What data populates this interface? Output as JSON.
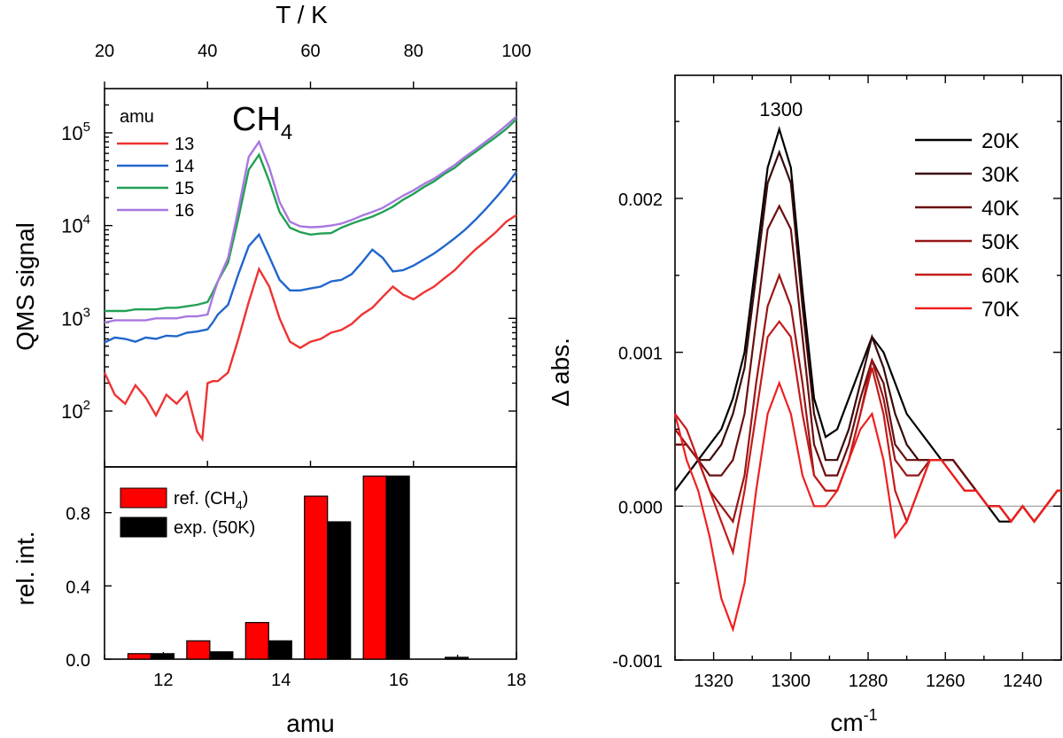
{
  "chart_data": [
    {
      "type": "line",
      "panel": "top-left",
      "title": "CH4",
      "title_main": "CH",
      "title_sub": "4",
      "xlabel": "T / K",
      "x_axis_position": "top",
      "ylabel": "QMS signal",
      "y_scale": "log",
      "xlim": [
        20,
        100
      ],
      "ylim": [
        25,
        300000
      ],
      "x_ticks": [
        20,
        40,
        60,
        80,
        100
      ],
      "y_ticks": [
        {
          "value": 100,
          "base": "10",
          "exp": "2"
        },
        {
          "value": 1000,
          "base": "10",
          "exp": "3"
        },
        {
          "value": 10000,
          "base": "10",
          "exp": "4"
        },
        {
          "value": 100000,
          "base": "10",
          "exp": "5"
        }
      ],
      "legend": {
        "title": "amu",
        "position": "top-left"
      },
      "series": [
        {
          "name": "13",
          "color": "#ee3333",
          "x": [
            20,
            22,
            24,
            26,
            28,
            30,
            32,
            34,
            36,
            38,
            39,
            40,
            41,
            42,
            44,
            46,
            48,
            50,
            52,
            54,
            56,
            58,
            60,
            62,
            64,
            66,
            68,
            70,
            72,
            74,
            76,
            78,
            80,
            82,
            84,
            86,
            88,
            90,
            92,
            94,
            96,
            98,
            100
          ],
          "y": [
            260,
            150,
            120,
            190,
            140,
            90,
            150,
            120,
            160,
            60,
            50,
            200,
            210,
            210,
            260,
            600,
            1500,
            3400,
            2200,
            1000,
            560,
            480,
            560,
            600,
            700,
            750,
            870,
            1100,
            1300,
            1700,
            2200,
            1800,
            1600,
            1900,
            2200,
            2700,
            3300,
            4300,
            5500,
            6800,
            8500,
            11000,
            13000
          ]
        },
        {
          "name": "14",
          "color": "#2266cc",
          "x": [
            20,
            22,
            24,
            26,
            28,
            30,
            32,
            34,
            36,
            38,
            40,
            41,
            42,
            44,
            46,
            48,
            50,
            52,
            54,
            56,
            58,
            60,
            62,
            64,
            66,
            68,
            70,
            72,
            74,
            76,
            78,
            80,
            82,
            84,
            86,
            88,
            90,
            92,
            94,
            96,
            98,
            100
          ],
          "y": [
            550,
            620,
            600,
            560,
            620,
            600,
            650,
            640,
            700,
            720,
            760,
            900,
            1100,
            1400,
            3000,
            6000,
            8000,
            4600,
            2600,
            2000,
            2000,
            2100,
            2200,
            2500,
            2600,
            3000,
            4000,
            5500,
            4500,
            3200,
            3300,
            3700,
            4300,
            5000,
            6000,
            7300,
            9000,
            11500,
            15000,
            20000,
            27000,
            38000
          ]
        },
        {
          "name": "15",
          "color": "#22a055",
          "x": [
            20,
            22,
            24,
            26,
            28,
            30,
            32,
            34,
            36,
            38,
            40,
            41,
            42,
            44,
            46,
            48,
            50,
            52,
            54,
            56,
            58,
            60,
            62,
            64,
            66,
            68,
            70,
            72,
            74,
            76,
            78,
            80,
            82,
            84,
            86,
            88,
            90,
            92,
            94,
            96,
            98,
            100
          ],
          "y": [
            1200,
            1200,
            1200,
            1250,
            1250,
            1250,
            1300,
            1300,
            1350,
            1400,
            1500,
            1900,
            2500,
            4000,
            12000,
            40000,
            58000,
            30000,
            14000,
            9500,
            8500,
            8000,
            8200,
            8300,
            9500,
            10500,
            11500,
            12500,
            14000,
            16000,
            19000,
            22000,
            26000,
            30000,
            36000,
            42000,
            52000,
            62000,
            75000,
            90000,
            110000,
            140000
          ]
        },
        {
          "name": "16",
          "color": "#a878e0",
          "x": [
            20,
            22,
            24,
            26,
            28,
            30,
            32,
            34,
            36,
            38,
            40,
            41,
            42,
            44,
            46,
            48,
            50,
            52,
            54,
            56,
            58,
            60,
            62,
            64,
            66,
            68,
            70,
            72,
            74,
            76,
            78,
            80,
            82,
            84,
            86,
            88,
            90,
            92,
            94,
            96,
            98,
            100
          ],
          "y": [
            900,
            950,
            950,
            950,
            950,
            1000,
            1000,
            1000,
            1050,
            1050,
            1100,
            1700,
            2500,
            4500,
            15000,
            55000,
            80000,
            42000,
            18000,
            11000,
            9800,
            9600,
            9700,
            10000,
            10500,
            11500,
            12800,
            14000,
            15500,
            18000,
            21000,
            24000,
            28000,
            32000,
            38000,
            45000,
            55000,
            66000,
            80000,
            97000,
            120000,
            150000
          ]
        }
      ]
    },
    {
      "type": "bar",
      "panel": "bottom-left",
      "xlabel": "amu",
      "ylabel": "rel. int.",
      "xlim": [
        11,
        18
      ],
      "ylim": [
        0,
        1.05
      ],
      "x_ticks": [
        12,
        14,
        16,
        18
      ],
      "y_ticks": [
        "0.0",
        "0.4",
        "0.8"
      ],
      "categories": [
        12,
        13,
        14,
        15,
        16,
        17
      ],
      "legend": {
        "position": "top-left"
      },
      "series": [
        {
          "name": "ref. (CH4)",
          "label_main": "ref. (CH",
          "label_sub": "4",
          "label_end": ")",
          "color": "#ff0000",
          "values": [
            0.03,
            0.1,
            0.2,
            0.89,
            1.0,
            0.0
          ]
        },
        {
          "name": "exp. (50K)",
          "label_main": "exp. (50K)",
          "color": "#000000",
          "values": [
            0.03,
            0.04,
            0.1,
            0.75,
            1.0,
            0.01
          ]
        }
      ]
    },
    {
      "type": "line",
      "panel": "right",
      "xlabel_main": "cm",
      "xlabel_sup": "-1",
      "ylabel": "Δ abs.",
      "x_reversed": true,
      "xlim": [
        1330,
        1230
      ],
      "ylim": [
        -0.001,
        0.0028
      ],
      "x_ticks": [
        1320,
        1300,
        1280,
        1260,
        1240
      ],
      "y_ticks": [
        {
          "value": -0.001,
          "label": "-0.001"
        },
        {
          "value": 0.0,
          "label": "0.000"
        },
        {
          "value": 0.001,
          "label": "0.001"
        },
        {
          "value": 0.002,
          "label": "0.002"
        }
      ],
      "zero_line": true,
      "annotation": {
        "text": "1300",
        "x": 1303,
        "y": 0.0025
      },
      "legend": {
        "position": "top-right"
      },
      "x": [
        1330,
        1327,
        1324,
        1321,
        1318,
        1315,
        1312,
        1309,
        1306,
        1303,
        1300,
        1297,
        1294,
        1291,
        1288,
        1285,
        1282,
        1279,
        1276,
        1273,
        1270,
        1267,
        1264,
        1261,
        1258,
        1255,
        1252,
        1249,
        1246,
        1243,
        1240,
        1237,
        1234,
        1231,
        1230
      ],
      "series": [
        {
          "name": "20K",
          "color": "#000000",
          "values": [
            0.0001,
            0.0002,
            0.0003,
            0.0004,
            0.0005,
            0.0007,
            0.001,
            0.0016,
            0.0022,
            0.00245,
            0.0022,
            0.0014,
            0.0007,
            0.00045,
            0.0005,
            0.0007,
            0.0009,
            0.0011,
            0.001,
            0.0008,
            0.0006,
            0.0005,
            0.0004,
            0.0003,
            0.0003,
            0.0002,
            0.0001,
            0.0,
            -0.0001,
            -0.0001,
            0.0,
            -0.0001,
            0.0,
            0.0001,
            0.0001
          ]
        },
        {
          "name": "30K",
          "color": "#3a0a0a",
          "values": [
            0.0004,
            0.0004,
            0.0003,
            0.0003,
            0.0004,
            0.0006,
            0.0009,
            0.0015,
            0.0021,
            0.0023,
            0.0021,
            0.0013,
            0.0006,
            0.0003,
            0.0003,
            0.0005,
            0.0008,
            0.0011,
            0.0009,
            0.0006,
            0.0004,
            0.0003,
            0.0003,
            0.0003,
            0.0003,
            0.0002,
            0.0001,
            0.0,
            0.0,
            -0.0001,
            0.0,
            -0.0001,
            0.0,
            0.0001,
            0.0001
          ]
        },
        {
          "name": "40K",
          "color": "#6a0e0e",
          "values": [
            0.0004,
            0.0004,
            0.0003,
            0.0002,
            0.0002,
            0.0003,
            0.0006,
            0.0012,
            0.0018,
            0.00195,
            0.0018,
            0.0011,
            0.0004,
            0.0002,
            0.0002,
            0.0004,
            0.0007,
            0.00095,
            0.0008,
            0.0004,
            0.0003,
            0.0003,
            0.0003,
            0.0003,
            0.0003,
            0.0002,
            0.0001,
            0.0,
            0.0,
            -0.0001,
            0.0,
            -0.0001,
            0.0,
            0.0001,
            0.0001
          ]
        },
        {
          "name": "50K",
          "color": "#991515",
          "values": [
            0.0005,
            0.0004,
            0.0003,
            0.0001,
            0.0,
            -0.0001,
            0.0002,
            0.0008,
            0.0013,
            0.0015,
            0.0013,
            0.0008,
            0.0002,
            0.0001,
            0.0001,
            0.0003,
            0.0006,
            0.00095,
            0.0007,
            0.0003,
            0.0002,
            0.0002,
            0.0003,
            0.0003,
            0.0002,
            0.0001,
            0.0001,
            0.0,
            0.0,
            -0.0001,
            0.0,
            -0.0001,
            0.0,
            0.0001,
            0.0001
          ]
        },
        {
          "name": "60K",
          "color": "#c41a1a",
          "values": [
            0.0006,
            0.0005,
            0.0003,
            0.0001,
            -0.0001,
            -0.0003,
            0.0001,
            0.0006,
            0.0011,
            0.0012,
            0.0011,
            0.0006,
            0.0002,
            0.0001,
            0.0001,
            0.0003,
            0.0006,
            0.0009,
            0.0006,
            0.0001,
            -0.0001,
            0.0001,
            0.0003,
            0.0003,
            0.0002,
            0.0001,
            0.0001,
            0.0,
            0.0,
            -0.0001,
            0.0,
            -0.0001,
            0.0,
            0.0001,
            0.0001
          ]
        },
        {
          "name": "70K",
          "color": "#ee2020",
          "values": [
            0.0006,
            0.0003,
            0.0001,
            -0.0002,
            -0.0006,
            -0.0008,
            -0.0005,
            0.0001,
            0.0006,
            0.0008,
            0.0006,
            0.0002,
            0.0,
            0.0,
            0.0001,
            0.0003,
            0.0005,
            0.0006,
            0.0003,
            -0.0002,
            -0.0001,
            0.0001,
            0.0003,
            0.0003,
            0.0002,
            0.0001,
            0.0001,
            0.0,
            0.0,
            -0.0001,
            0.0,
            -0.0001,
            0.0,
            0.0001,
            0.0001
          ]
        }
      ]
    }
  ]
}
